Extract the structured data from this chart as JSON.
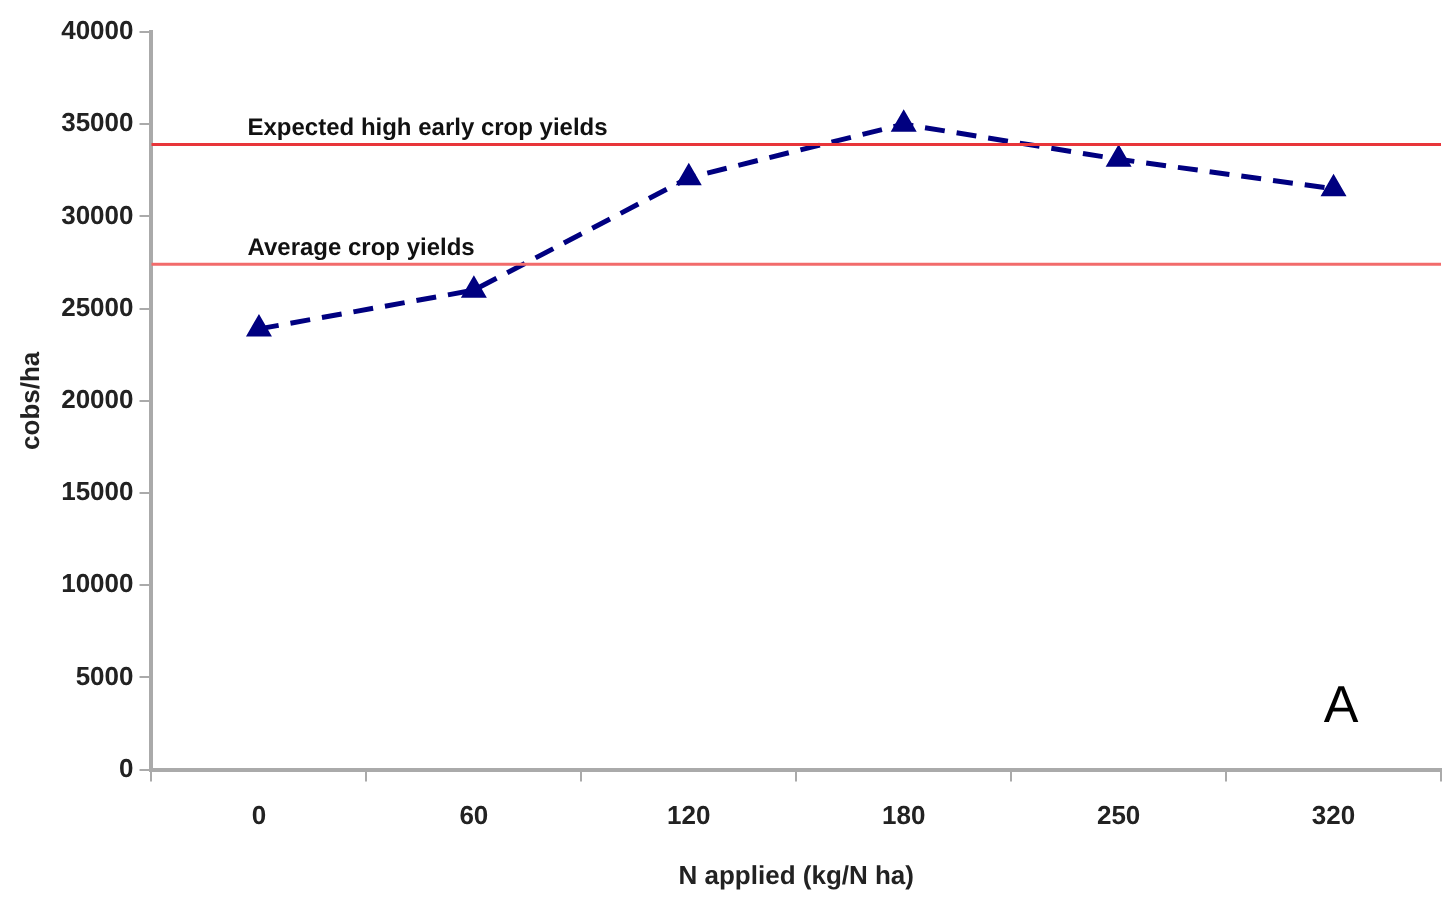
{
  "chart_data": {
    "type": "line",
    "xlabel": "N applied (kg/N ha)",
    "ylabel": "cobs/ha",
    "categories": [
      "0",
      "60",
      "120",
      "180",
      "250",
      "320"
    ],
    "series": [
      {
        "color": "#000080",
        "values": [
          23900,
          26000,
          32100,
          35000,
          33100,
          31500
        ]
      }
    ],
    "ylim": [
      0,
      40000
    ],
    "yticks": [
      0,
      5000,
      10000,
      15000,
      20000,
      25000,
      30000,
      35000,
      40000
    ],
    "ref_lines": [
      {
        "axis": "y",
        "value": 33900,
        "label": "Expected high early crop yields",
        "color": "#e8353a"
      },
      {
        "axis": "y",
        "value": 27400,
        "label": "Average crop yields",
        "color": "#f26b6b"
      }
    ],
    "annotations": [
      "A"
    ],
    "marker": "triangle",
    "line_style": "dashed",
    "grid": false,
    "legend": false
  }
}
